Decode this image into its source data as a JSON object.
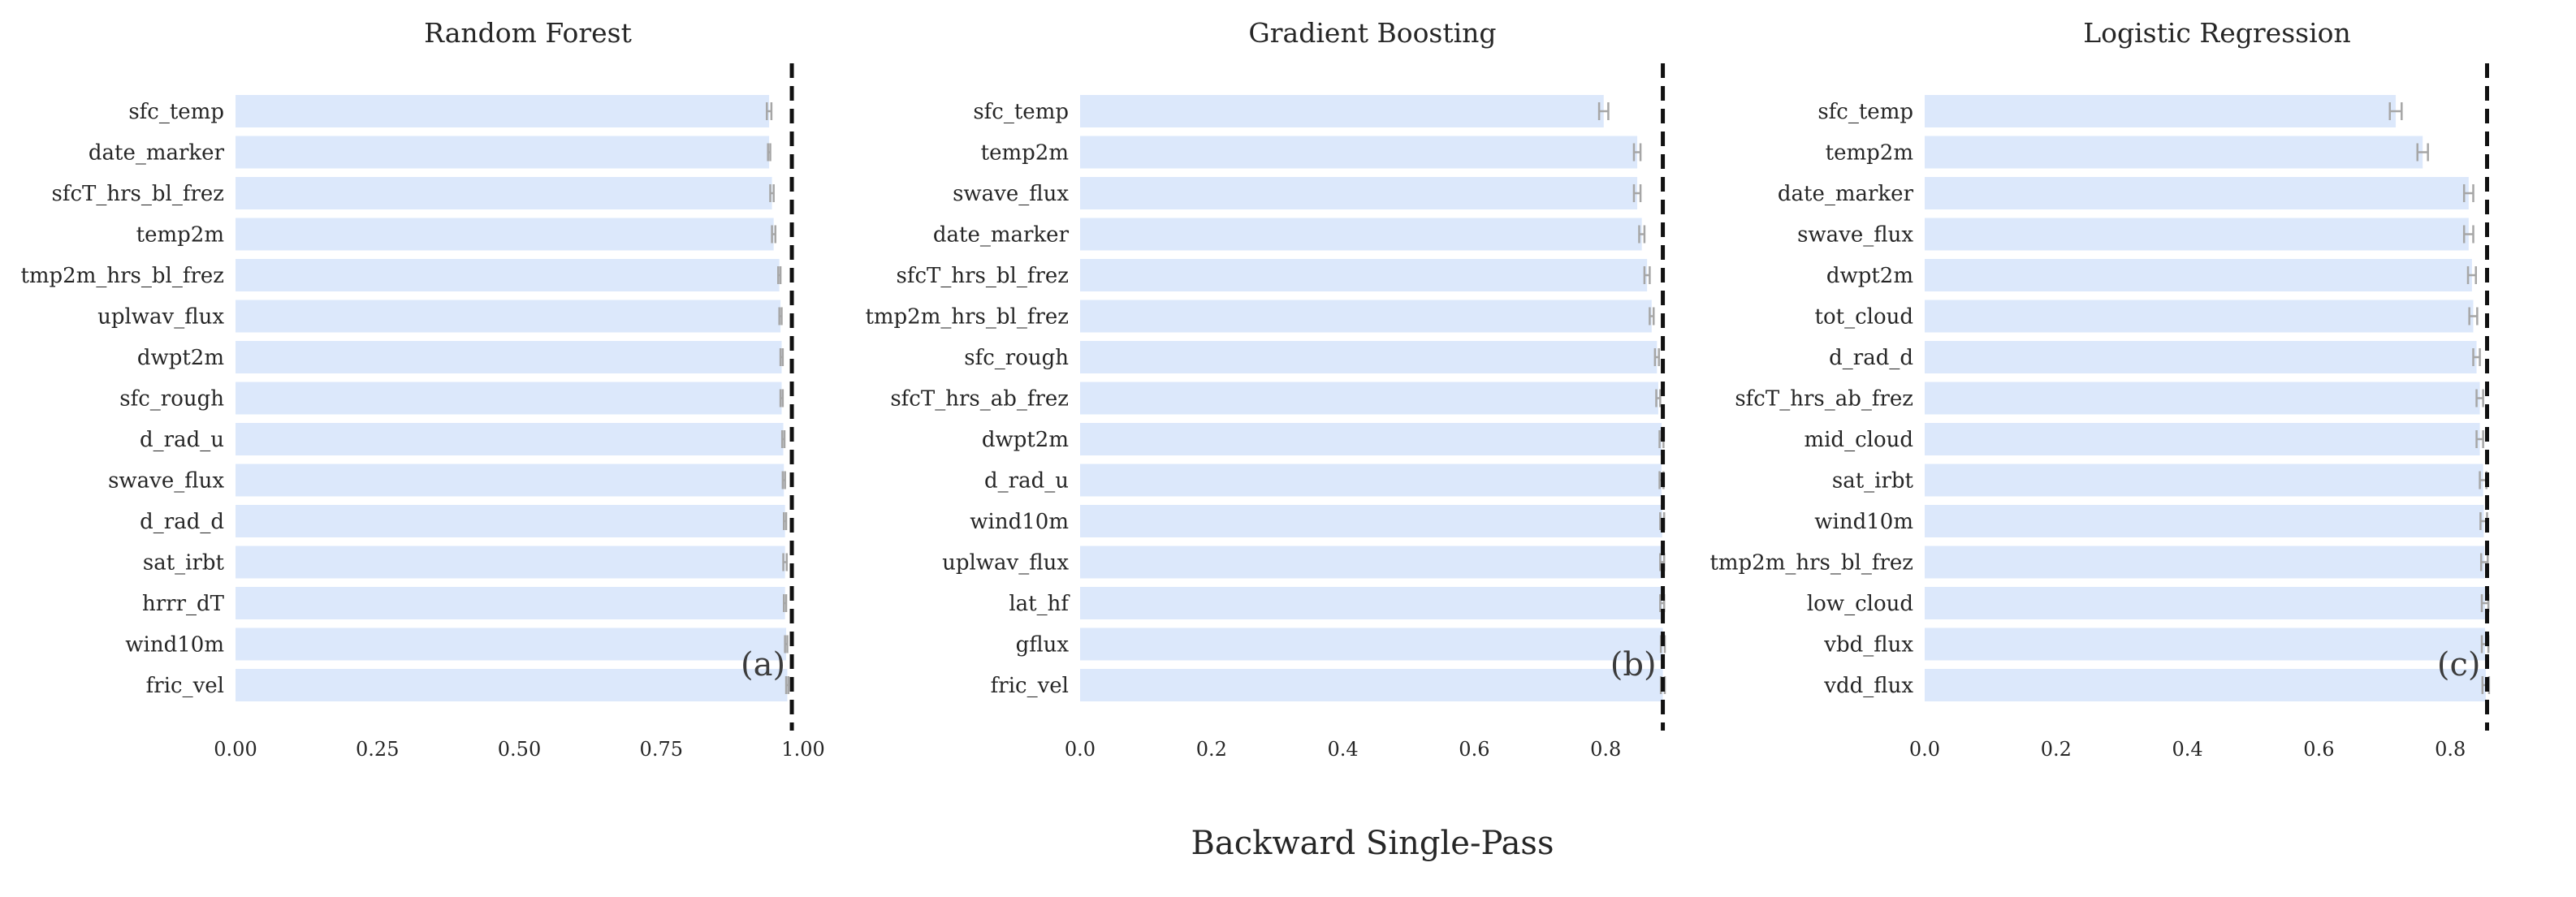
{
  "figure": {
    "suptitle": "Backward Single-Pass"
  },
  "style": {
    "bar_color": "#dce8fb",
    "error_color": "#a6a6a6",
    "ref_line_color": "#111111"
  },
  "chart_data": [
    {
      "type": "bar",
      "orientation": "horizontal",
      "title": "Random Forest",
      "panel_label": "(a)",
      "xlim": [
        0,
        1.03
      ],
      "xticks": [
        0.0,
        0.25,
        0.5,
        0.75,
        1.0
      ],
      "xtick_labels": [
        "0.00",
        "0.25",
        "0.50",
        "0.75",
        "1.00"
      ],
      "reference_line": 0.98,
      "categories": [
        "sfc_temp",
        "date_marker",
        "sfcT_hrs_bl_frez",
        "temp2m",
        "tmp2m_hrs_bl_frez",
        "uplwav_flux",
        "dwpt2m",
        "sfc_rough",
        "d_rad_u",
        "swave_flux",
        "d_rad_d",
        "sat_irbt",
        "hrrr_dT",
        "wind10m",
        "fric_vel"
      ],
      "values": [
        0.94,
        0.94,
        0.945,
        0.948,
        0.958,
        0.96,
        0.962,
        0.962,
        0.965,
        0.966,
        0.968,
        0.968,
        0.968,
        0.97,
        0.972
      ],
      "errors": [
        0.004,
        0.002,
        0.003,
        0.003,
        0.002,
        0.002,
        0.002,
        0.002,
        0.002,
        0.002,
        0.002,
        0.003,
        0.002,
        0.002,
        0.002
      ]
    },
    {
      "type": "bar",
      "orientation": "horizontal",
      "title": "Gradient Boosting",
      "panel_label": "(b)",
      "xlim": [
        0,
        0.89
      ],
      "xticks": [
        0.0,
        0.2,
        0.4,
        0.6,
        0.8
      ],
      "xtick_labels": [
        "0.0",
        "0.2",
        "0.4",
        "0.6",
        "0.8"
      ],
      "reference_line": 0.887,
      "categories": [
        "sfc_temp",
        "temp2m",
        "swave_flux",
        "date_marker",
        "sfcT_hrs_bl_frez",
        "tmp2m_hrs_bl_frez",
        "sfc_rough",
        "sfcT_hrs_ab_frez",
        "dwpt2m",
        "d_rad_u",
        "wind10m",
        "uplwav_flux",
        "lat_hf",
        "gflux",
        "fric_vel"
      ],
      "values": [
        0.797,
        0.848,
        0.848,
        0.855,
        0.863,
        0.87,
        0.878,
        0.88,
        0.885,
        0.885,
        0.886,
        0.886,
        0.886,
        0.887,
        0.887
      ],
      "errors": [
        0.007,
        0.005,
        0.005,
        0.004,
        0.004,
        0.003,
        0.003,
        0.003,
        0.003,
        0.003,
        0.003,
        0.003,
        0.003,
        0.003,
        0.003
      ]
    },
    {
      "type": "bar",
      "orientation": "horizontal",
      "title": "Logistic Regression",
      "panel_label": "(c)",
      "xlim": [
        0,
        0.89
      ],
      "xticks": [
        0.0,
        0.2,
        0.4,
        0.6,
        0.8
      ],
      "xtick_labels": [
        "0.0",
        "0.2",
        "0.4",
        "0.6",
        "0.8"
      ],
      "reference_line": 0.856,
      "categories": [
        "sfc_temp",
        "temp2m",
        "date_marker",
        "swave_flux",
        "dwpt2m",
        "tot_cloud",
        "d_rad_d",
        "sfcT_hrs_ab_frez",
        "mid_cloud",
        "sat_irbt",
        "wind10m",
        "tmp2m_hrs_bl_frez",
        "low_cloud",
        "vbd_flux",
        "vdd_flux"
      ],
      "values": [
        0.717,
        0.758,
        0.828,
        0.828,
        0.833,
        0.835,
        0.84,
        0.845,
        0.845,
        0.85,
        0.851,
        0.852,
        0.853,
        0.853,
        0.854
      ],
      "errors": [
        0.009,
        0.008,
        0.007,
        0.007,
        0.006,
        0.006,
        0.005,
        0.005,
        0.005,
        0.005,
        0.005,
        0.005,
        0.005,
        0.005,
        0.005
      ]
    }
  ]
}
